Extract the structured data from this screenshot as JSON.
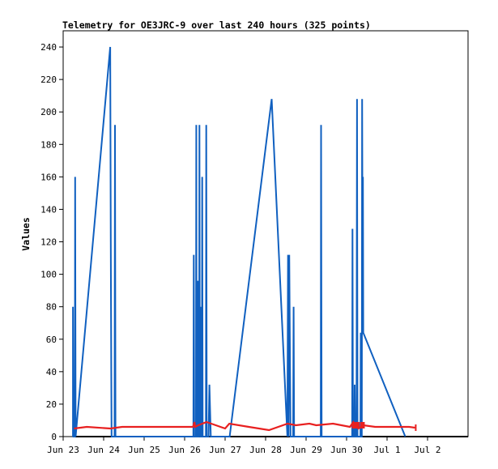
{
  "chart_data": {
    "type": "line",
    "title": "Telemetry for OE3JRC-9 over last 240 hours (325 points)",
    "xlabel": "",
    "ylabel": "Values",
    "ylim": [
      0,
      250
    ],
    "xlim": [
      0,
      240
    ],
    "x_ticks": [
      {
        "label": "Jun 23",
        "x": 0
      },
      {
        "label": "Jun 24",
        "x": 24
      },
      {
        "label": "Jun 25",
        "x": 48
      },
      {
        "label": "Jun 26",
        "x": 72
      },
      {
        "label": "Jun 27",
        "x": 96
      },
      {
        "label": "Jun 28",
        "x": 120
      },
      {
        "label": "Jun 29",
        "x": 144
      },
      {
        "label": "Jun 30",
        "x": 168
      },
      {
        "label": "Jul 1",
        "x": 192
      },
      {
        "label": "Jul 2",
        "x": 216
      }
    ],
    "y_ticks": [
      0,
      20,
      40,
      60,
      80,
      100,
      120,
      140,
      160,
      180,
      200,
      220,
      240
    ],
    "grid": false,
    "series": [
      {
        "color": "#1060c0",
        "points": [
          [
            5.8,
            0
          ],
          [
            5.8,
            80
          ],
          [
            6.1,
            0
          ],
          [
            6.9,
            0
          ],
          [
            7.1,
            160
          ],
          [
            7.4,
            0
          ],
          [
            27.9,
            240
          ],
          [
            28.2,
            120
          ],
          [
            28.5,
            40
          ],
          [
            28.7,
            0
          ],
          [
            30.5,
            0
          ],
          [
            30.7,
            192
          ],
          [
            31.0,
            0
          ],
          [
            77.2,
            0
          ],
          [
            77.4,
            112
          ],
          [
            77.7,
            0
          ],
          [
            78.7,
            0
          ],
          [
            78.9,
            192
          ],
          [
            79.1,
            0
          ],
          [
            79.7,
            0
          ],
          [
            79.9,
            96
          ],
          [
            80.1,
            0
          ],
          [
            80.6,
            0
          ],
          [
            80.8,
            192
          ],
          [
            81.0,
            0
          ],
          [
            81.4,
            80
          ],
          [
            81.6,
            0
          ],
          [
            82.2,
            0
          ],
          [
            82.4,
            160
          ],
          [
            82.7,
            0
          ],
          [
            84.6,
            0
          ],
          [
            84.8,
            192
          ],
          [
            85.1,
            0
          ],
          [
            86.2,
            0
          ],
          [
            86.7,
            32
          ],
          [
            87.5,
            0
          ],
          [
            98.7,
            0
          ],
          [
            123.6,
            208
          ],
          [
            132.9,
            0
          ],
          [
            133.3,
            112
          ],
          [
            133.6,
            0
          ],
          [
            134.0,
            112
          ],
          [
            134.5,
            40
          ],
          [
            134.8,
            0
          ],
          [
            136.3,
            0
          ],
          [
            136.6,
            80
          ],
          [
            136.9,
            0
          ],
          [
            152.7,
            0
          ],
          [
            152.9,
            192
          ],
          [
            153.2,
            0
          ],
          [
            171.3,
            0
          ],
          [
            171.5,
            128
          ],
          [
            171.8,
            0
          ],
          [
            172.6,
            0
          ],
          [
            172.8,
            32
          ],
          [
            173.1,
            0
          ],
          [
            173.9,
            0
          ],
          [
            174.2,
            208
          ],
          [
            174.5,
            0
          ],
          [
            176.2,
            0
          ],
          [
            176.4,
            64
          ],
          [
            176.7,
            0
          ],
          [
            177.0,
            0
          ],
          [
            177.2,
            208
          ],
          [
            177.5,
            100
          ],
          [
            177.7,
            160
          ],
          [
            177.9,
            64
          ],
          [
            202.8,
            0
          ]
        ]
      },
      {
        "color": "#e82020",
        "points": [
          [
            6.5,
            5
          ],
          [
            14,
            6
          ],
          [
            28,
            5
          ],
          [
            35,
            6
          ],
          [
            77,
            6
          ],
          [
            77.8,
            9
          ],
          [
            78.3,
            6
          ],
          [
            80,
            7
          ],
          [
            85,
            9
          ],
          [
            96,
            5
          ],
          [
            98.5,
            8
          ],
          [
            110,
            6
          ],
          [
            122,
            4
          ],
          [
            133,
            8
          ],
          [
            138,
            7
          ],
          [
            146,
            8
          ],
          [
            150,
            7
          ],
          [
            160,
            8
          ],
          [
            170,
            6
          ],
          [
            172,
            9
          ],
          [
            175,
            5
          ],
          [
            178,
            7
          ],
          [
            185,
            6
          ],
          [
            205,
            6
          ],
          [
            208.5,
            5.5
          ]
        ]
      }
    ],
    "spikes": {
      "color": "#e82020",
      "x": [
        171.6,
        172.3,
        173.0,
        173.8,
        174.4,
        175.3,
        176.6,
        177.4,
        178.3
      ],
      "from": 5,
      "to": 9
    },
    "end_markers": {
      "color": "#e82020",
      "x": 209.0,
      "from": 3.5,
      "to": 7.5
    }
  }
}
